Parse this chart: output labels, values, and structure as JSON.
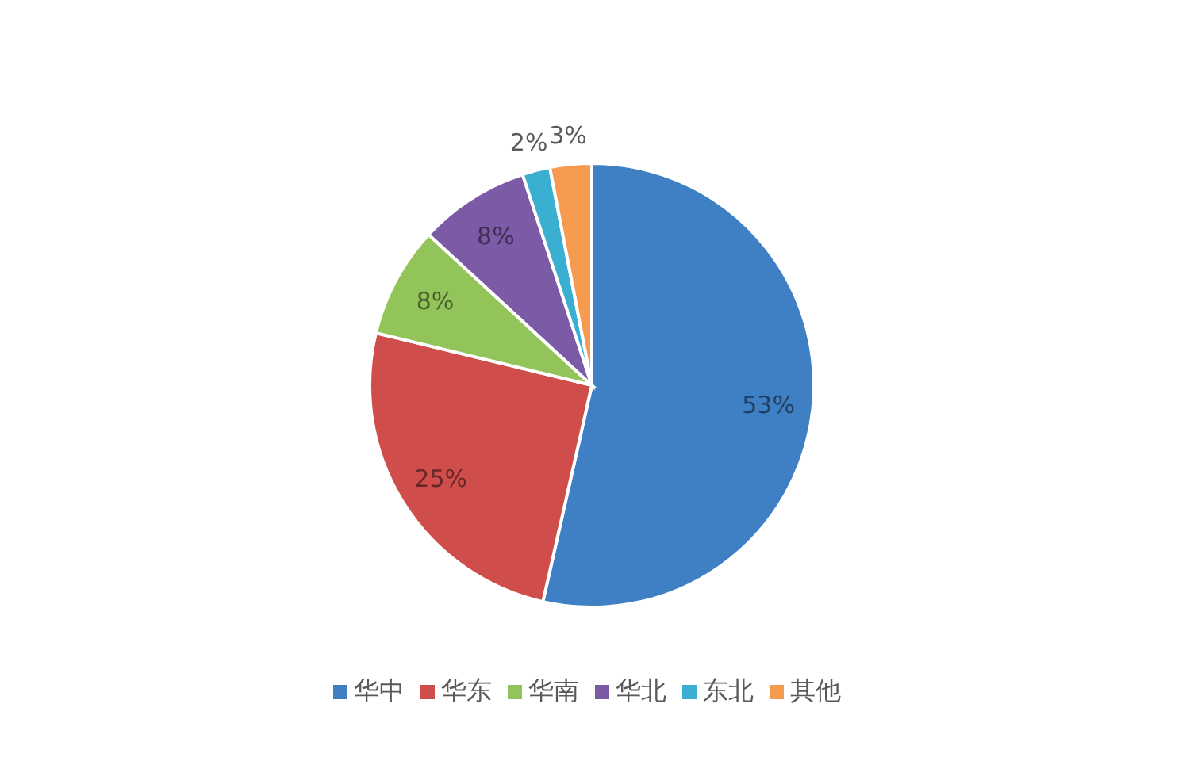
{
  "chart_data": {
    "type": "pie",
    "categories": [
      "华中",
      "华东",
      "华南",
      "华北",
      "东北",
      "其他"
    ],
    "values": [
      53,
      25,
      8,
      8,
      2,
      3
    ],
    "colors": [
      "#3f7fc3",
      "#cf4e4c",
      "#93c45a",
      "#7c5ba6",
      "#3aafd1",
      "#f59a4e"
    ],
    "value_labels": [
      "53%",
      "25%",
      "8%",
      "8%",
      "2%",
      "3%"
    ],
    "legend": "bottom"
  }
}
